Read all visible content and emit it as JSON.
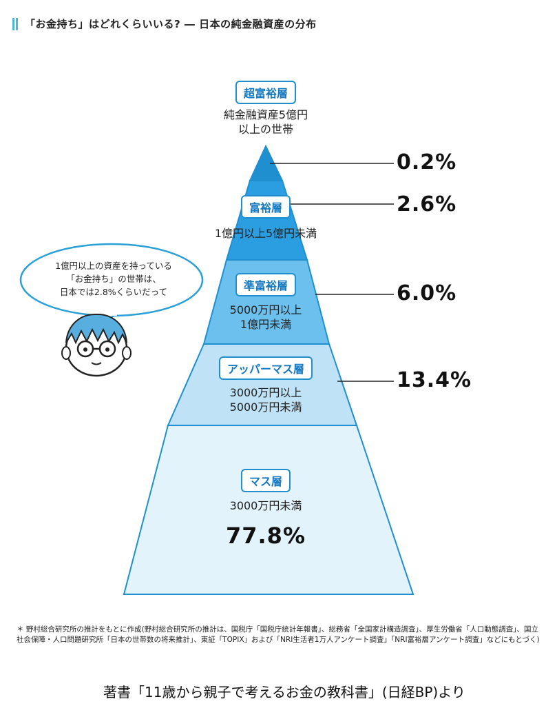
{
  "title": "「お金持ち」はどれくらいいる? ― 日本の純金融資産の分布",
  "colors": {
    "accent": "#4ab6d8",
    "layer_top": "#1f8fd0",
    "layer_2": "#2a9ee0",
    "layer_3": "#6cc0ee",
    "layer_4": "#bfe2f6",
    "layer_5": "#e3f3fc",
    "outline": "#1f8fd0"
  },
  "layers": [
    {
      "name": "超富裕層",
      "desc1": "純金融資産5億円",
      "desc2": "以上の世帯",
      "pct": "0.2%"
    },
    {
      "name": "富裕層",
      "desc1": "1億円以上5億円未満",
      "desc2": "",
      "pct": "2.6%"
    },
    {
      "name": "準富裕層",
      "desc1": "5000万円以上",
      "desc2": "1億円未満",
      "pct": "6.0%"
    },
    {
      "name": "アッパーマス層",
      "desc1": "3000万円以上",
      "desc2": "5000万円未満",
      "pct": "13.4%"
    },
    {
      "name": "マス層",
      "desc1": "3000万円未満",
      "desc2": "",
      "pct": "77.8%"
    }
  ],
  "bubble": {
    "line1": "1億円以上の資産を持っている",
    "line2": "「お金持ち」の世帯は、",
    "line3": "日本では2.8%くらいだって"
  },
  "character_icon": "boy-with-glasses-icon",
  "footnote": "＊ 野村総合研究所の推計をもとに作成(野村総合研究所の推計は、国税庁「国税庁統計年報書」、総務省「全国家計構造調査」、厚生労働省「人口動態調査」、国立社会保障・人口問題研究所「日本の世帯数の将来推計」、東証「TOPIX」および「NRI生活者1万人アンケート調査」「NRI富裕層アンケート調査」などにもとづく)",
  "credit": "著書「11歳から親子で考えるお金の教科書」(日経BP)より"
}
